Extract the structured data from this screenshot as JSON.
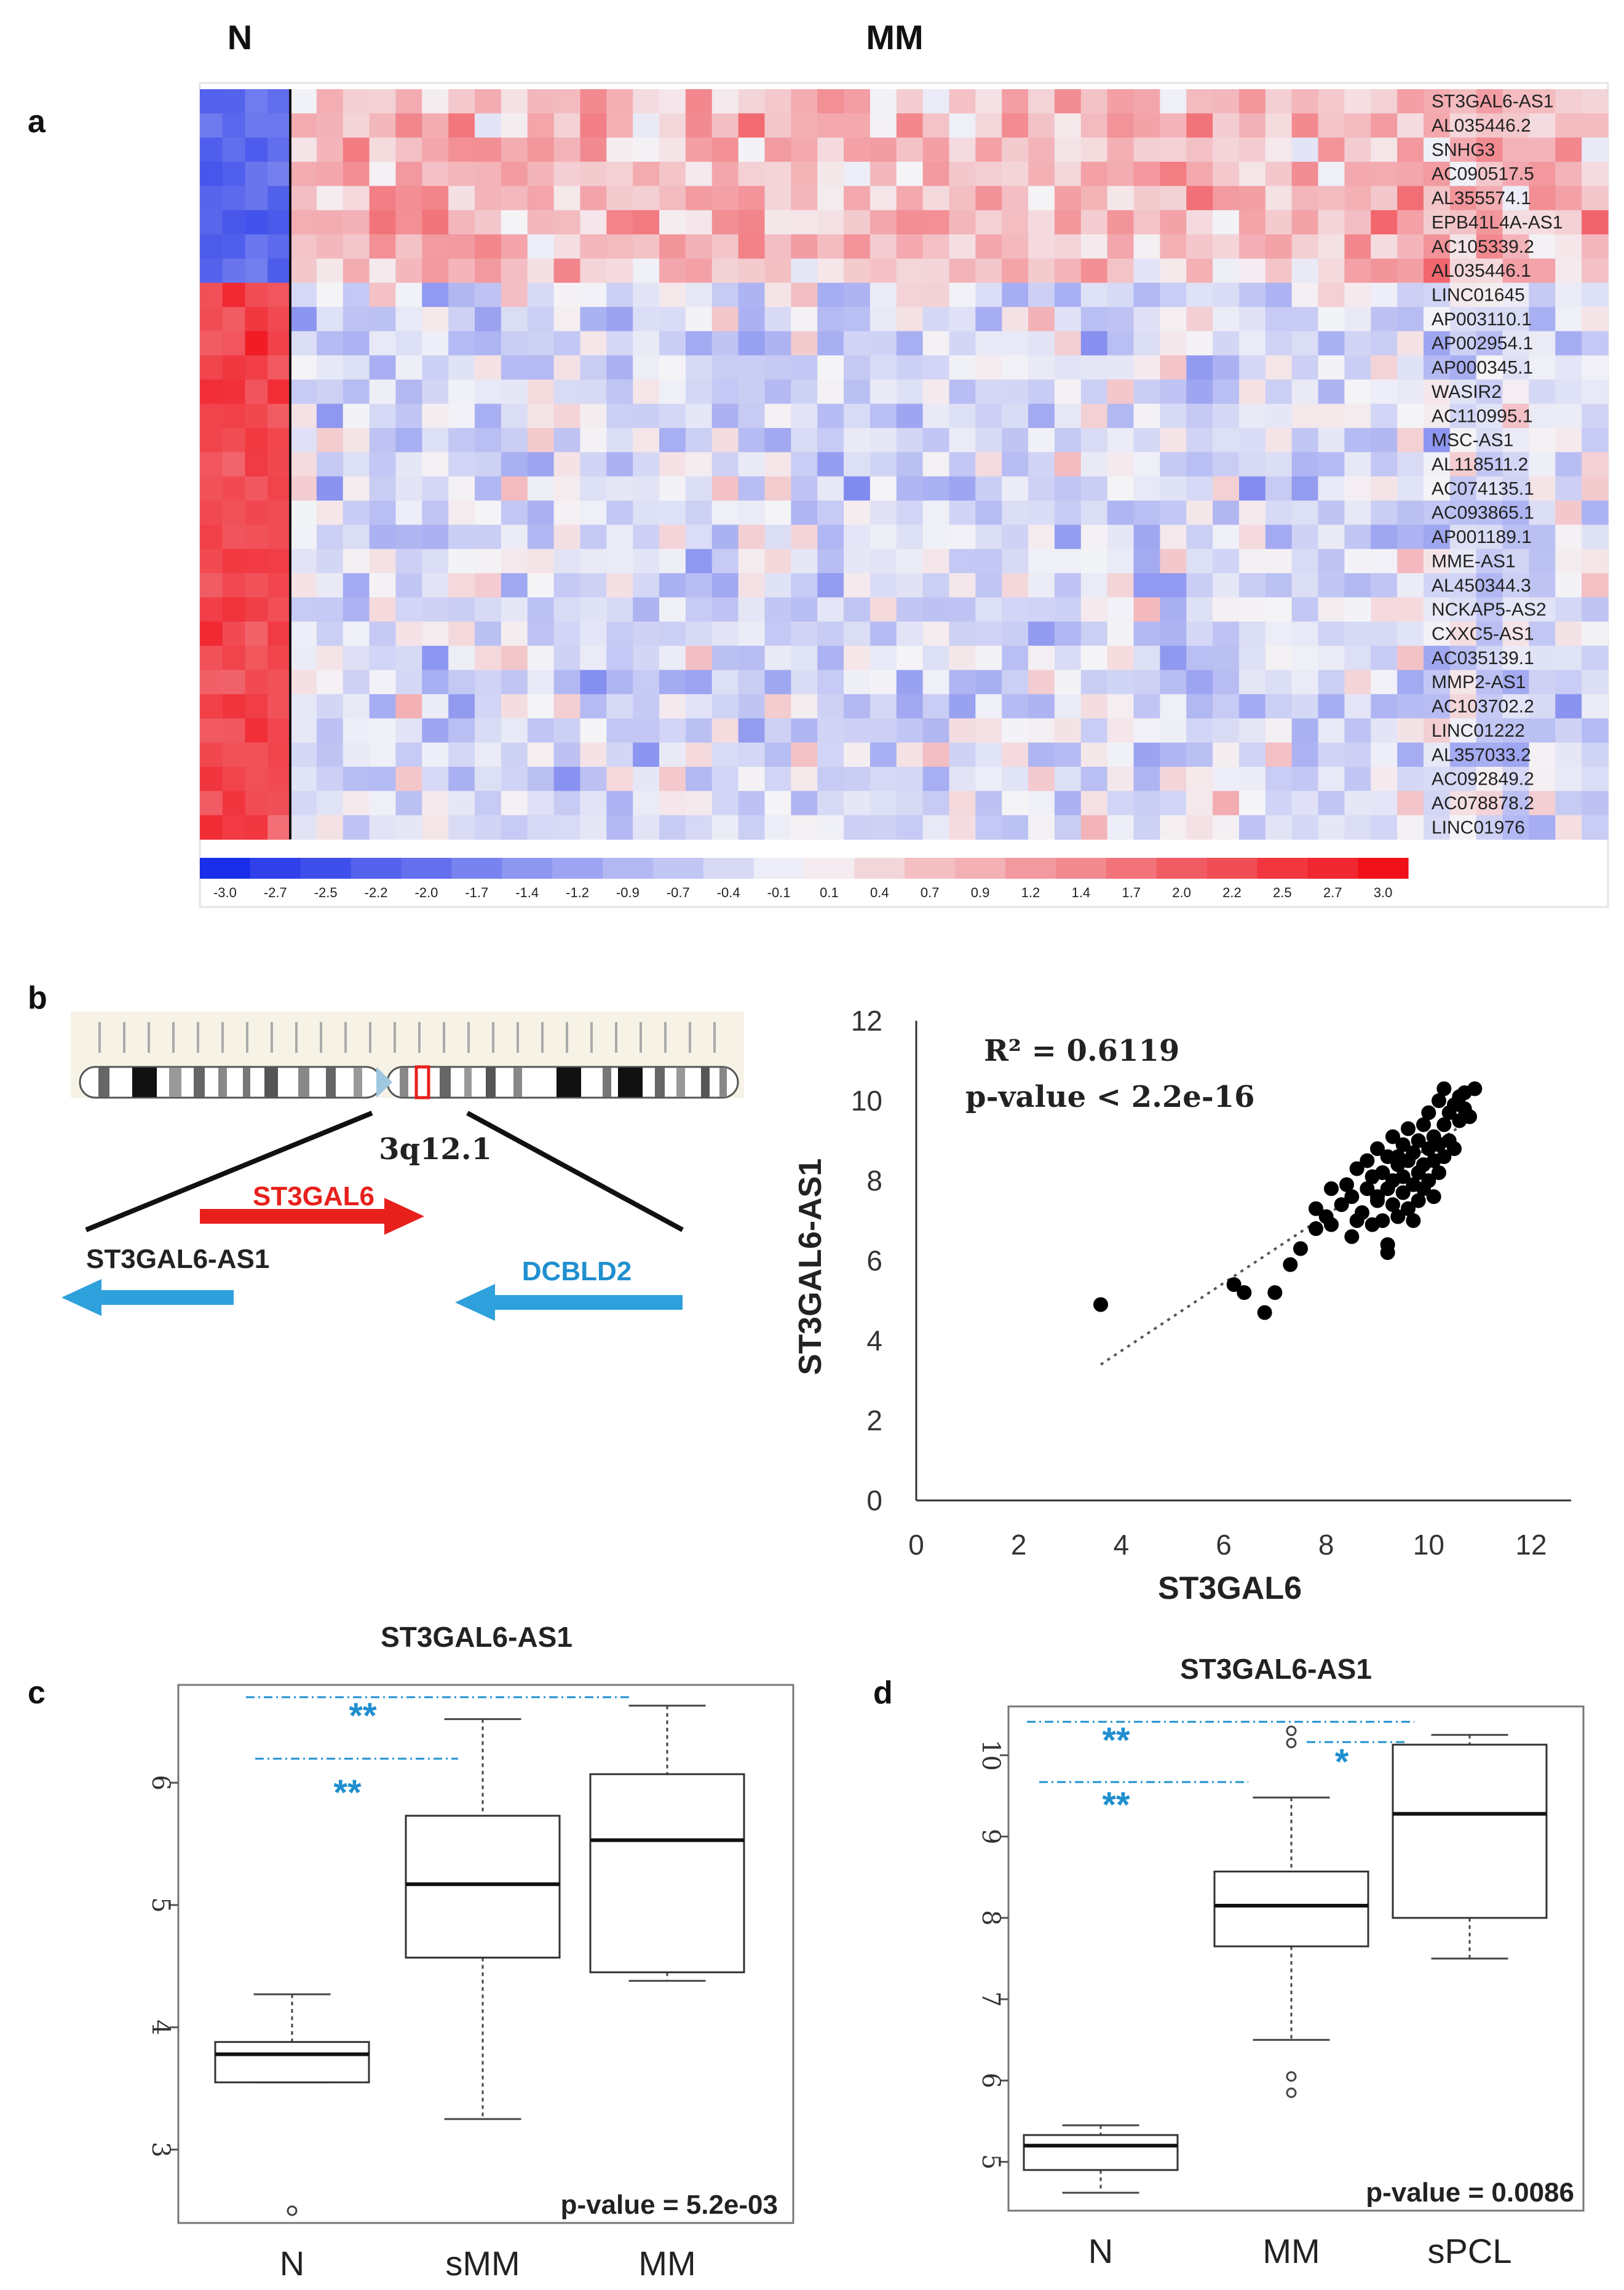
{
  "panel_a": {
    "letter": "a",
    "group_labels": [
      "N",
      "MM"
    ],
    "colorbar_ticks": [
      "-3.0",
      "-2.7",
      "-2.5",
      "-2.2",
      "-2.0",
      "-1.7",
      "-1.4",
      "-1.2",
      "-0.9",
      "-0.7",
      "-0.4",
      "-0.1",
      "0.1",
      "0.4",
      "0.7",
      "0.9",
      "1.2",
      "1.4",
      "1.7",
      "2.0",
      "2.2",
      "2.5",
      "2.7",
      "3.0"
    ]
  },
  "panel_b": {
    "letter": "b",
    "locus": "3q12.1",
    "genes": [
      "ST3GAL6",
      "ST3GAL6-AS1",
      "DCBLD2"
    ],
    "colors": {
      "sense": "#e8201c",
      "antisense": "#2ea0dc"
    },
    "stat1": "R² = 0.6119",
    "stat2": "p-value < 2.2e-16"
  },
  "panel_c": {
    "letter": "c",
    "title": "ST3GAL6-AS1",
    "pvalue": "p-value = 5.2e-03",
    "sig": [
      "**",
      "**"
    ]
  },
  "panel_d": {
    "letter": "d",
    "title": "ST3GAL6-AS1",
    "pvalue": "p-value = 0.0086",
    "sig": [
      "**",
      "**",
      "*"
    ]
  },
  "chart_data": [
    {
      "type": "heatmap",
      "panel": "a",
      "rows": [
        "ST3GAL6-AS1",
        "AL035446.2",
        "SNHG3",
        "AC090517.5",
        "AL355574.1",
        "EPB41L4A-AS1",
        "AC105339.2",
        "AL035446.1",
        "LINC01645",
        "AP003110.1",
        "AP002954.1",
        "AP000345.1",
        "WASIR2",
        "AC110995.1",
        "MSC-AS1",
        "AL118511.2",
        "AC074135.1",
        "AC093865.1",
        "AP001189.1",
        "MME-AS1",
        "AL450344.3",
        "NCKAP5-AS2",
        "CXXC5-AS1",
        "AC035139.1",
        "MMP2-AS1",
        "AC103702.2",
        "LINC01222",
        "AL357033.2",
        "AC092849.2",
        "AC078878.2",
        "LINC01976"
      ],
      "column_groups": [
        {
          "name": "N",
          "columns": 4
        },
        {
          "name": "MM",
          "columns": 50
        }
      ],
      "value_range": [
        -3.0,
        3.0
      ],
      "colors": {
        "low": "#1a2de8",
        "mid": "#f4f4f7",
        "high": "#f0101a"
      },
      "pattern": "Top 8 rows: N low (blue), MM high (red); remaining 23 rows: N high (red), MM low (blue)"
    },
    {
      "type": "scatter",
      "panel": "b",
      "xlabel": "ST3GAL6",
      "ylabel": "ST3GAL6-AS1",
      "xlim": [
        0,
        12
      ],
      "ylim": [
        0,
        12
      ],
      "xticks": [
        0,
        2,
        4,
        6,
        8,
        10,
        12
      ],
      "yticks": [
        0,
        2,
        4,
        6,
        8,
        10,
        12
      ],
      "trendline": {
        "x": [
          3.6,
          10.9
        ],
        "y": [
          3.4,
          9.6
        ]
      },
      "points": [
        [
          3.6,
          4.9
        ],
        [
          6.2,
          5.4
        ],
        [
          6.4,
          5.2
        ],
        [
          6.8,
          4.7
        ],
        [
          7.0,
          5.2
        ],
        [
          7.3,
          5.9
        ],
        [
          7.5,
          6.3
        ],
        [
          7.8,
          6.8
        ],
        [
          7.8,
          7.3
        ],
        [
          8.0,
          7.1
        ],
        [
          8.1,
          7.8
        ],
        [
          8.1,
          6.9
        ],
        [
          8.3,
          7.4
        ],
        [
          8.4,
          7.9
        ],
        [
          8.5,
          7.6
        ],
        [
          8.5,
          6.6
        ],
        [
          8.6,
          8.3
        ],
        [
          8.7,
          7.2
        ],
        [
          8.8,
          7.8
        ],
        [
          8.8,
          8.5
        ],
        [
          8.9,
          8.1
        ],
        [
          8.9,
          6.9
        ],
        [
          9.0,
          7.5
        ],
        [
          9.0,
          8.8
        ],
        [
          9.1,
          8.2
        ],
        [
          9.1,
          7.0
        ],
        [
          9.2,
          7.8
        ],
        [
          9.2,
          8.6
        ],
        [
          9.2,
          6.2
        ],
        [
          9.2,
          6.4
        ],
        [
          9.3,
          8.0
        ],
        [
          9.3,
          7.4
        ],
        [
          9.3,
          9.1
        ],
        [
          9.4,
          8.4
        ],
        [
          9.4,
          7.1
        ],
        [
          9.5,
          7.7
        ],
        [
          9.5,
          8.9
        ],
        [
          9.5,
          8.1
        ],
        [
          9.6,
          7.3
        ],
        [
          9.6,
          8.5
        ],
        [
          9.6,
          9.3
        ],
        [
          9.7,
          7.9
        ],
        [
          9.7,
          8.7
        ],
        [
          9.7,
          7.0
        ],
        [
          9.8,
          8.2
        ],
        [
          9.8,
          9.0
        ],
        [
          9.8,
          7.5
        ],
        [
          9.9,
          8.4
        ],
        [
          9.9,
          9.4
        ],
        [
          9.9,
          7.8
        ],
        [
          10.0,
          8.8
        ],
        [
          10.0,
          8.0
        ],
        [
          10.0,
          9.7
        ],
        [
          10.1,
          8.5
        ],
        [
          10.1,
          7.6
        ],
        [
          10.1,
          9.1
        ],
        [
          10.2,
          8.9
        ],
        [
          10.2,
          8.2
        ],
        [
          10.2,
          10.0
        ],
        [
          10.3,
          9.4
        ],
        [
          10.3,
          8.6
        ],
        [
          10.3,
          10.3
        ],
        [
          10.4,
          9.0
        ],
        [
          10.4,
          9.7
        ],
        [
          10.5,
          8.8
        ],
        [
          10.5,
          9.9
        ],
        [
          10.6,
          9.5
        ],
        [
          10.6,
          10.1
        ],
        [
          10.7,
          9.8
        ],
        [
          10.7,
          10.2
        ],
        [
          10.8,
          9.6
        ],
        [
          10.9,
          10.3
        ],
        [
          8.6,
          7.0
        ],
        [
          9.0,
          7.6
        ],
        [
          9.4,
          8.6
        ]
      ]
    },
    {
      "type": "box",
      "panel": "c",
      "title": "ST3GAL6-AS1",
      "categories": [
        "N",
        "sMM",
        "MM"
      ],
      "ylim": [
        2.4,
        6.8
      ],
      "yticks": [
        3,
        4,
        5,
        6
      ],
      "boxes": [
        {
          "name": "N",
          "whisker_low": 3.55,
          "q1": 3.55,
          "median": 3.78,
          "q3": 3.88,
          "whisker_high": 4.27,
          "outliers": [
            2.5
          ]
        },
        {
          "name": "sMM",
          "whisker_low": 3.25,
          "q1": 4.57,
          "median": 5.17,
          "q3": 5.73,
          "whisker_high": 6.52,
          "outliers": []
        },
        {
          "name": "MM",
          "whisker_low": 4.38,
          "q1": 4.45,
          "median": 5.53,
          "q3": 6.07,
          "whisker_high": 6.63,
          "outliers": []
        }
      ],
      "pvalue": "p-value = 5.2e-03"
    },
    {
      "type": "box",
      "panel": "d",
      "title": "ST3GAL6-AS1",
      "categories": [
        "N",
        "MM",
        "sPCL"
      ],
      "ylim": [
        4.4,
        10.6
      ],
      "yticks": [
        5,
        6,
        7,
        8,
        9,
        10
      ],
      "boxes": [
        {
          "name": "N",
          "whisker_low": 4.62,
          "q1": 4.9,
          "median": 5.2,
          "q3": 5.33,
          "whisker_high": 5.45,
          "outliers": []
        },
        {
          "name": "MM",
          "whisker_low": 6.5,
          "q1": 7.65,
          "median": 8.15,
          "q3": 8.57,
          "whisker_high": 9.48,
          "outliers": [
            5.85,
            6.05,
            10.15,
            10.3
          ]
        },
        {
          "name": "sPCL",
          "whisker_low": 7.5,
          "q1": 8.0,
          "median": 9.28,
          "q3": 10.13,
          "whisker_high": 10.25,
          "outliers": []
        }
      ],
      "pvalue": "p-value = 0.0086"
    }
  ]
}
